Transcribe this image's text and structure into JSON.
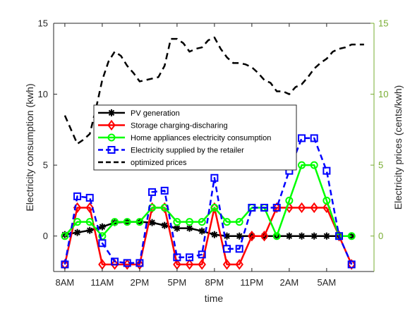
{
  "chart_data": {
    "type": "line",
    "xlabel": "time",
    "ylabel": "Electricity consumption (kwh)",
    "y2label": "Electricity prices (cents/kwh)",
    "xticks": [
      {
        "x": 0,
        "label": "8AM"
      },
      {
        "x": 3,
        "label": "11AM"
      },
      {
        "x": 6,
        "label": "2PM"
      },
      {
        "x": 9,
        "label": "5PM"
      },
      {
        "x": 12,
        "label": "8PM"
      },
      {
        "x": 15,
        "label": "11PM"
      },
      {
        "x": 18,
        "label": "2AM"
      },
      {
        "x": 21,
        "label": "5AM"
      }
    ],
    "xlim": [
      -0.9,
      24.8
    ],
    "ylim": [
      -2.5,
      15
    ],
    "y2lim": [
      -2.5,
      15
    ],
    "yticks": [
      0,
      5,
      10,
      15
    ],
    "y2ticks": [
      0,
      5,
      10,
      15
    ],
    "grid": false,
    "legend_position": "center-left",
    "colors": {
      "axis_left": "#262626",
      "axis_right": "#77AC30",
      "pv": "#000000",
      "storage": "#ff0000",
      "home": "#00ff00",
      "retailer": "#0000ff",
      "prices": "#000000"
    },
    "series": [
      {
        "name": "PV generation",
        "key": "pv",
        "axis": "left",
        "marker": "star",
        "dash": "solid",
        "x": [
          0,
          1,
          2,
          3,
          4,
          5,
          6,
          7,
          8,
          9,
          10,
          11,
          12,
          13,
          14,
          15,
          16,
          17,
          18,
          19,
          20,
          21,
          22,
          23
        ],
        "values": [
          0.1,
          0.25,
          0.4,
          0.65,
          0.95,
          1.0,
          1.0,
          0.95,
          0.75,
          0.55,
          0.55,
          0.35,
          0.1,
          0,
          0,
          0,
          0,
          0,
          0,
          0,
          0,
          0,
          0,
          0
        ]
      },
      {
        "name": "Storage charging-discharing",
        "key": "storage",
        "axis": "left",
        "marker": "diamond",
        "dash": "solid",
        "x": [
          0,
          1,
          2,
          3,
          4,
          5,
          6,
          7,
          8,
          9,
          10,
          11,
          12,
          13,
          14,
          15,
          16,
          17,
          18,
          19,
          20,
          21,
          22,
          23
        ],
        "values": [
          -2,
          2,
          2,
          -2,
          -2,
          -2,
          -2,
          2,
          2,
          -2,
          -2,
          -2,
          2,
          -2,
          -2,
          0,
          0,
          2,
          2,
          2,
          2,
          2,
          0,
          -2
        ]
      },
      {
        "name": "Home appliances electricity consumption",
        "key": "home",
        "axis": "left",
        "marker": "circle",
        "dash": "solid",
        "x": [
          0,
          1,
          2,
          3,
          4,
          5,
          6,
          7,
          8,
          9,
          10,
          11,
          12,
          13,
          14,
          15,
          16,
          17,
          18,
          19,
          20,
          21,
          22,
          23
        ],
        "values": [
          0,
          1,
          1,
          0,
          1,
          1,
          1,
          2,
          2,
          1,
          1,
          1,
          2,
          1,
          1,
          2,
          2,
          0,
          2.5,
          5,
          5,
          2.5,
          0,
          0
        ]
      },
      {
        "name": "Electricity supplied by the retailer",
        "key": "retailer",
        "axis": "left",
        "marker": "square",
        "dash": "dashed",
        "x": [
          0,
          1,
          2,
          3,
          4,
          5,
          6,
          7,
          8,
          9,
          10,
          11,
          12,
          13,
          14,
          15,
          16,
          17,
          18,
          19,
          20,
          21,
          22,
          23
        ],
        "values": [
          -2,
          2.8,
          2.7,
          -0.5,
          -1.8,
          -1.9,
          -1.9,
          3.1,
          3.2,
          -1.5,
          -1.5,
          -1.3,
          4.1,
          -0.9,
          -0.9,
          2.0,
          2.0,
          2.0,
          4.6,
          6.9,
          6.9,
          4.6,
          0,
          -2
        ]
      },
      {
        "name": "optimized prices",
        "key": "prices",
        "axis": "right",
        "marker": "none",
        "dash": "dashed",
        "x": [
          0,
          0.5,
          1,
          1.5,
          2,
          2.5,
          3,
          3.5,
          4,
          4.5,
          5,
          5.5,
          6,
          6.5,
          7,
          7.5,
          8,
          8.5,
          9,
          9.5,
          10,
          10.5,
          11,
          11.5,
          12,
          12.5,
          13,
          13.5,
          14,
          14.5,
          15,
          15.5,
          16,
          16.5,
          17,
          17.5,
          18,
          18.5,
          19,
          19.5,
          20,
          20.5,
          21,
          21.5,
          22,
          22.5,
          23,
          23.5,
          24
        ],
        "values": [
          8.5,
          7.5,
          6.5,
          6.8,
          7.2,
          9,
          11,
          12.3,
          13,
          12.7,
          12,
          11.5,
          10.9,
          11,
          11.1,
          11.2,
          12,
          13.9,
          13.9,
          13.6,
          13.0,
          13.2,
          13.3,
          13.8,
          14,
          13.2,
          12.6,
          12.2,
          12.2,
          12.1,
          11.9,
          11.5,
          11,
          10.8,
          10.2,
          10.2,
          10.0,
          10.5,
          10.7,
          11.2,
          11.8,
          12.2,
          12.5,
          13,
          13.2,
          13.3,
          13.5,
          13.5,
          13.5
        ]
      }
    ]
  }
}
